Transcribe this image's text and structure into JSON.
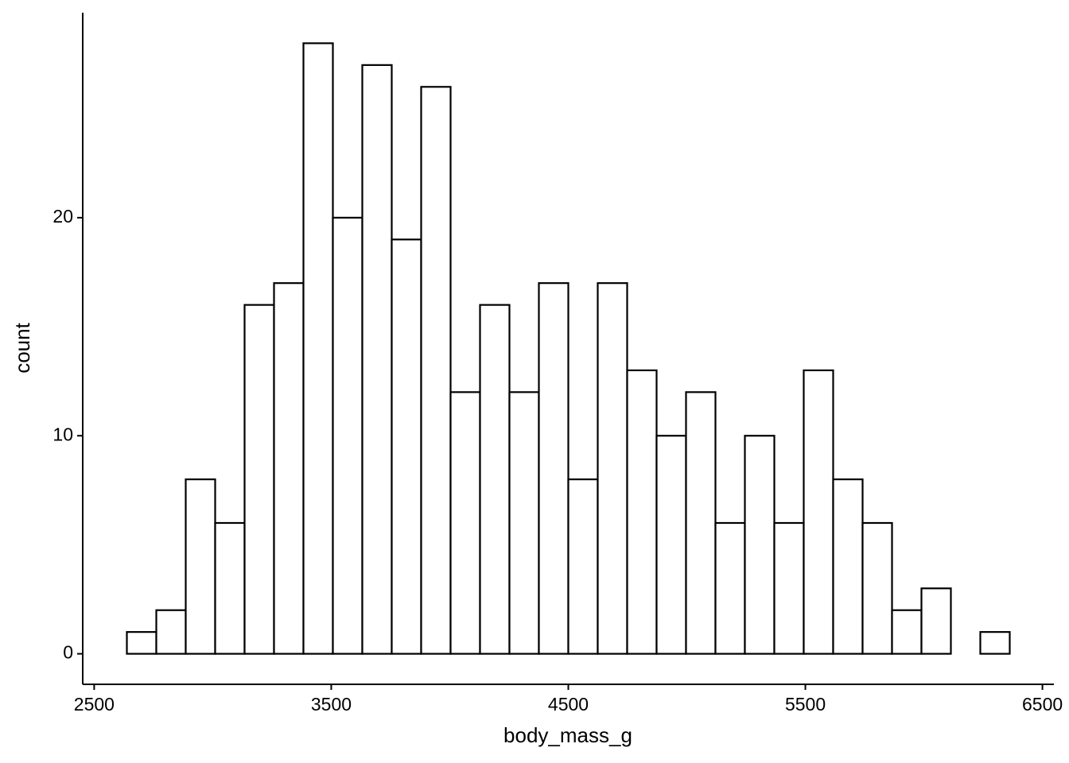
{
  "chart_data": {
    "type": "histogram",
    "x_label": "body_mass_g",
    "y_label": "count",
    "bins": [
      2637.93,
      2762.07,
      2886.21,
      3010.34,
      3134.48,
      3258.62,
      3382.76,
      3506.9,
      3631.03,
      3755.17,
      3879.31,
      4003.45,
      4127.59,
      4251.72,
      4375.86,
      4500.0,
      4624.14,
      4748.28,
      4872.41,
      4996.55,
      5120.69,
      5244.83,
      5368.97,
      5493.1,
      5617.24,
      5741.38,
      5865.52,
      5989.66,
      6113.79,
      6237.93,
      6362.07
    ],
    "values": [
      1,
      2,
      8,
      6,
      16,
      17,
      28,
      20,
      27,
      19,
      26,
      12,
      16,
      12,
      17,
      8,
      17,
      13,
      10,
      12,
      6,
      10,
      6,
      13,
      8,
      6,
      2,
      3,
      0,
      1
    ],
    "fill": "#ffffff",
    "edgecolor": "#000000",
    "xlim": [
      2451.7,
      6548.3
    ],
    "xticks": [
      2500,
      3500,
      4500,
      5500,
      6500
    ],
    "ylim": [
      -1.4,
      29.4
    ],
    "yticks": [
      0,
      10,
      20
    ],
    "grid": false
  }
}
